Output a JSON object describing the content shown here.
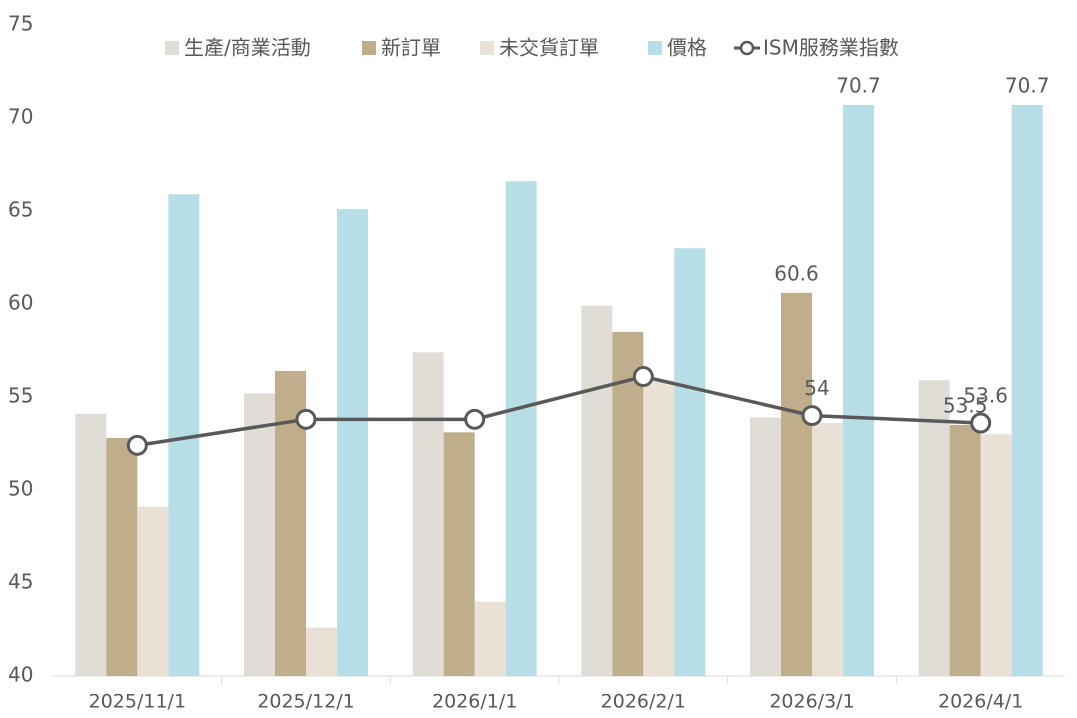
{
  "chart_data": {
    "type": "bar",
    "categories": [
      "2025/11/1",
      "2025/12/1",
      "2026/1/1",
      "2026/2/1",
      "2026/3/1",
      "2026/4/1"
    ],
    "series": [
      {
        "name": "生產/商業活動",
        "type": "bar",
        "color": "#e0dcd6",
        "values": [
          54.1,
          55.2,
          57.4,
          59.9,
          53.9,
          55.9
        ]
      },
      {
        "name": "新訂單",
        "type": "bar",
        "color": "#bfad8b",
        "values": [
          52.8,
          56.4,
          53.1,
          58.5,
          60.6,
          53.5
        ],
        "value_labels": [
          null,
          null,
          null,
          null,
          "60.6",
          "53.5"
        ]
      },
      {
        "name": "未交貨訂單",
        "type": "bar",
        "color": "#e9e1d5",
        "values": [
          49.1,
          42.6,
          44.0,
          55.9,
          53.6,
          53.0
        ]
      },
      {
        "name": "價格",
        "type": "bar",
        "color": "#b7dde7",
        "values": [
          65.9,
          65.1,
          66.6,
          63.0,
          70.7,
          70.7
        ],
        "value_labels": [
          null,
          null,
          null,
          null,
          "70.7",
          "70.7"
        ]
      },
      {
        "name": "ISM服務業指數",
        "type": "line",
        "color": "#595959",
        "values": [
          52.4,
          53.8,
          53.8,
          56.1,
          54,
          53.6
        ],
        "value_labels": [
          null,
          null,
          null,
          null,
          "54",
          "53.6"
        ]
      }
    ],
    "ylim": [
      40,
      75
    ],
    "yticks": [
      40,
      45,
      50,
      55,
      60,
      65,
      70,
      75
    ],
    "legend": "top"
  }
}
